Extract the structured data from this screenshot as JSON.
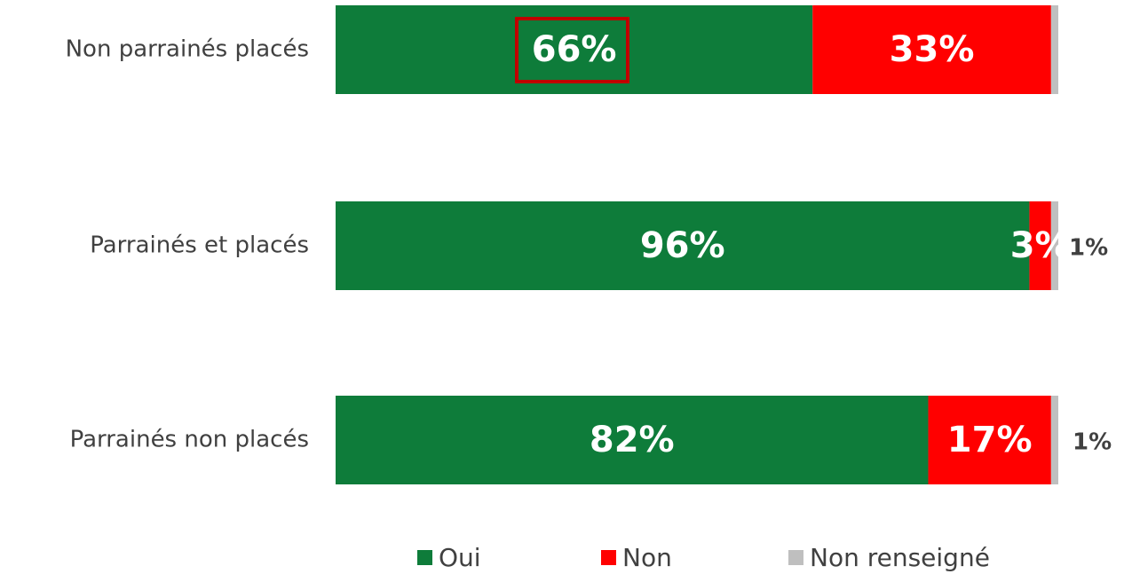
{
  "chart_data": {
    "type": "stacked-bar-horizontal",
    "categories": [
      "Non parrainés placés",
      "Parrainés et placés",
      "Parrainés non placés"
    ],
    "xlim": [
      0,
      100
    ],
    "series": [
      {
        "name": "Oui",
        "color": "#0e7c3a",
        "values": [
          66,
          96,
          82
        ],
        "value_labels": [
          "66%",
          "96%",
          "82%"
        ]
      },
      {
        "name": "Non",
        "color": "#ff0000",
        "values": [
          33,
          3,
          17
        ],
        "value_labels": [
          "33%",
          "3%",
          "17%"
        ]
      },
      {
        "name": "Non renseigné",
        "color": "#bfbfbf",
        "values": [
          1,
          1,
          1
        ],
        "value_labels": [
          null,
          "1%",
          "1%"
        ]
      }
    ]
  }
}
